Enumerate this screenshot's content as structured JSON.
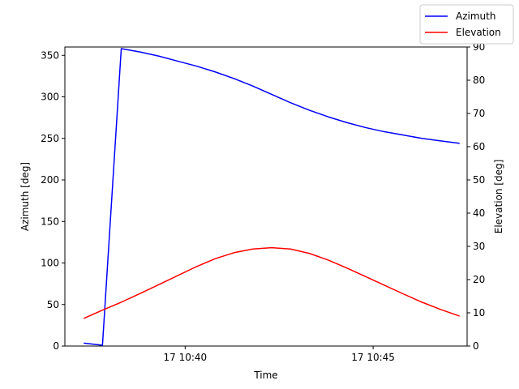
{
  "chart_data": {
    "type": "line",
    "title": "",
    "xlabel": "Time",
    "ylabel_left": "Azimuth [deg]",
    "ylabel_right": "Elevation [deg]",
    "x_unit": "minutes",
    "xlim": [
      36.8,
      47.5
    ],
    "x_ticks": [
      {
        "value": 40,
        "label": "17 10:40"
      },
      {
        "value": 45,
        "label": "17 10:45"
      }
    ],
    "ylim_left": [
      0,
      360
    ],
    "y_ticks_left": [
      0,
      50,
      100,
      150,
      200,
      250,
      300,
      350
    ],
    "ylim_right": [
      0,
      90
    ],
    "y_ticks_right": [
      0,
      10,
      20,
      30,
      40,
      50,
      60,
      70,
      80,
      90
    ],
    "grid": false,
    "legend_position": "top-right",
    "series": [
      {
        "name": "Azimuth",
        "axis": "left",
        "color": "#0000ff",
        "x": [
          37.3,
          37.8,
          38.3,
          38.8,
          39.3,
          39.8,
          40.3,
          40.8,
          41.3,
          41.8,
          42.3,
          42.8,
          43.3,
          43.8,
          44.3,
          44.8,
          45.3,
          45.8,
          46.3,
          46.8,
          47.3
        ],
        "y": [
          3.5,
          1,
          358,
          354,
          349,
          343,
          337,
          330,
          322,
          313,
          303,
          293,
          284,
          276,
          269,
          263,
          258,
          254,
          250,
          247,
          244
        ]
      },
      {
        "name": "Elevation",
        "axis": "right",
        "color": "#ff0000",
        "x": [
          37.3,
          37.8,
          38.3,
          38.8,
          39.3,
          39.8,
          40.3,
          40.8,
          41.3,
          41.8,
          42.3,
          42.8,
          43.3,
          43.8,
          44.3,
          44.8,
          45.3,
          45.8,
          46.3,
          46.8,
          47.3
        ],
        "y": [
          8.3,
          10.8,
          13.2,
          15.8,
          18.5,
          21.2,
          23.9,
          26.3,
          28.1,
          29.2,
          29.6,
          29.2,
          27.9,
          25.9,
          23.5,
          20.9,
          18.3,
          15.7,
          13.2,
          11.0,
          9.0
        ]
      }
    ]
  }
}
